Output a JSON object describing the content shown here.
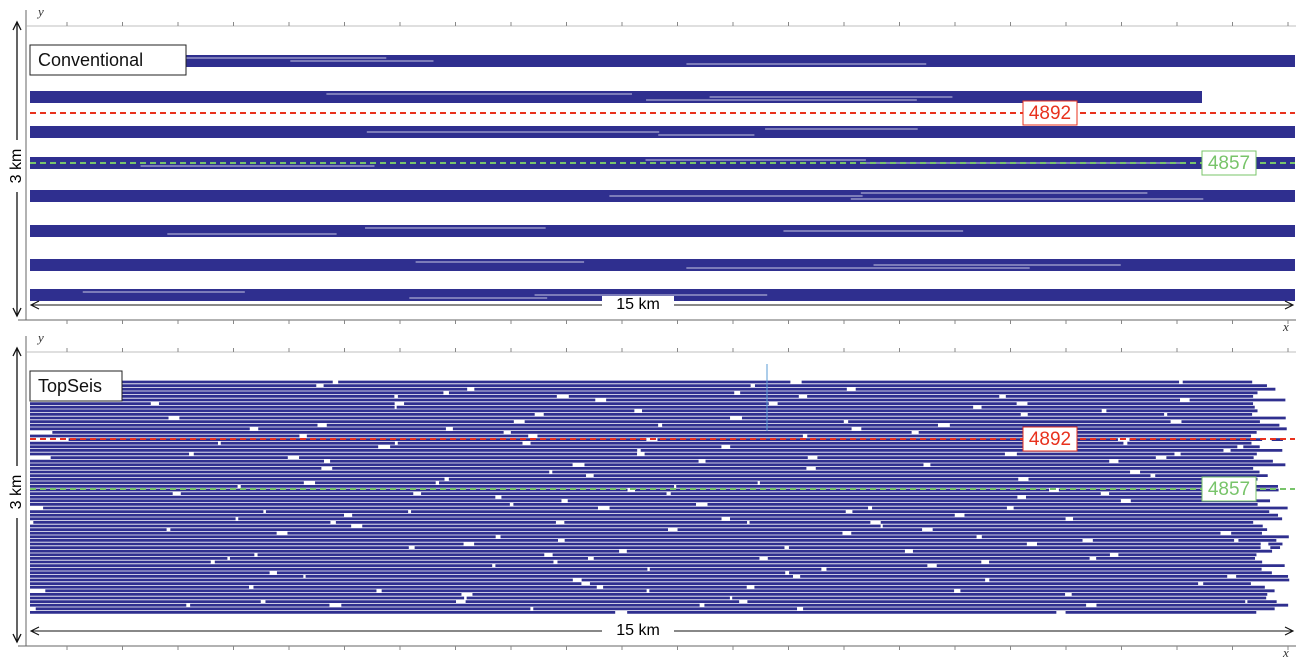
{
  "panels": [
    {
      "label": "Conventional",
      "axes": {
        "x": "x",
        "y": "y"
      },
      "lines": [
        {
          "label": "4892"
        },
        {
          "label": "4857"
        }
      ],
      "scale": {
        "vertical": "3 km",
        "horizontal": "15 km"
      }
    },
    {
      "label": "TopSeis",
      "axes": {
        "x": "x",
        "y": "y"
      },
      "lines": [
        {
          "label": "4892"
        },
        {
          "label": "4857"
        }
      ],
      "scale": {
        "vertical": "3 km",
        "horizontal": "15 km"
      }
    }
  ]
}
